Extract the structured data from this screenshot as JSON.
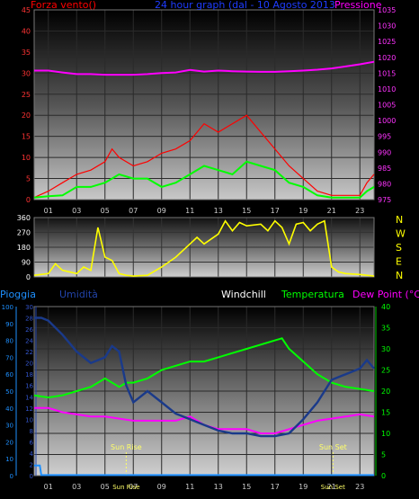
{
  "chart_data": [
    {
      "type": "line",
      "title": "24 hour graph (dal - 10 Agosto 2013",
      "left_axis_label": "Forza vento()",
      "right_axis_label": "Pressione",
      "x_ticks": [
        "01",
        "03",
        "05",
        "07",
        "09",
        "11",
        "13",
        "15",
        "17",
        "19",
        "21",
        "23"
      ],
      "x_range": [
        0,
        24
      ],
      "left_axis": {
        "min": 0,
        "max": 45,
        "ticks": [
          0,
          5,
          10,
          15,
          20,
          25,
          30,
          35,
          40,
          45
        ]
      },
      "right_axis": {
        "min": 975,
        "max": 1035,
        "ticks": [
          975,
          980,
          985,
          990,
          995,
          1000,
          1005,
          1010,
          1015,
          1020,
          1025,
          1030,
          1035
        ]
      },
      "colors": {
        "gust": "#ff0000",
        "wind": "#00ff00",
        "pressure": "#ff00ff"
      },
      "pressure": {
        "x": [
          0,
          1,
          2,
          3,
          4,
          5,
          6,
          7,
          8,
          9,
          10,
          11,
          12,
          13,
          14,
          15,
          16,
          17,
          18,
          19,
          20,
          21,
          22,
          23,
          24
        ],
        "y": [
          1015.8,
          1015.8,
          1015.2,
          1014.7,
          1014.7,
          1014.5,
          1014.5,
          1014.5,
          1014.7,
          1015.0,
          1015.2,
          1016.0,
          1015.5,
          1015.8,
          1015.6,
          1015.5,
          1015.4,
          1015.4,
          1015.6,
          1015.8,
          1016.1,
          1016.5,
          1017.1,
          1017.8,
          1018.6
        ]
      },
      "wind": {
        "x": [
          0,
          1,
          2,
          3,
          4,
          5,
          5.5,
          6,
          7,
          8,
          9,
          10,
          11,
          12,
          13,
          14,
          15,
          16,
          17,
          18,
          19,
          20,
          21,
          22,
          23,
          23.5,
          24
        ],
        "y": [
          0.5,
          0.8,
          1,
          3,
          3,
          4,
          5,
          6,
          5,
          5,
          3,
          4,
          6,
          8,
          7,
          6,
          9,
          8,
          7,
          4,
          3,
          1,
          0.5,
          0.5,
          0.5,
          2,
          3
        ]
      },
      "gust": {
        "x": [
          0,
          1,
          2,
          3,
          4,
          5,
          5.5,
          6,
          7,
          8,
          9,
          10,
          11,
          12,
          13,
          14,
          15,
          16,
          17,
          18,
          19,
          20,
          21,
          22,
          23,
          23.5,
          24
        ],
        "y": [
          0.5,
          2,
          4,
          6,
          7,
          9,
          12,
          10,
          8,
          9,
          11,
          12,
          14,
          18,
          16,
          18,
          20,
          16,
          12,
          8,
          5,
          2,
          1,
          1,
          1,
          4,
          6
        ]
      }
    },
    {
      "type": "line",
      "left_axis": {
        "min": 0,
        "max": 360,
        "ticks": [
          0,
          90,
          180,
          270,
          360
        ]
      },
      "compass_labels": [
        "N",
        "W",
        "S",
        "E",
        "N"
      ],
      "x_range": [
        0,
        24
      ],
      "colors": {
        "direction": "#ffff00"
      },
      "direction": {
        "x": [
          0,
          1,
          1.5,
          2,
          3,
          3.5,
          4,
          4.5,
          5,
          5.5,
          6,
          6.5,
          7,
          8,
          9,
          10,
          11,
          11.5,
          12,
          12.5,
          13,
          13.5,
          14,
          14.5,
          15,
          16,
          16.5,
          17,
          17.5,
          18,
          18.5,
          19,
          19.5,
          20,
          20.5,
          21,
          21.5,
          22,
          23,
          24
        ],
        "y": [
          10,
          20,
          80,
          40,
          20,
          60,
          40,
          300,
          120,
          100,
          20,
          10,
          5,
          10,
          60,
          120,
          200,
          240,
          200,
          230,
          260,
          340,
          280,
          330,
          310,
          320,
          280,
          340,
          300,
          200,
          320,
          330,
          280,
          320,
          340,
          60,
          30,
          20,
          15,
          5
        ]
      }
    },
    {
      "type": "line",
      "labels": {
        "rain": "Pioggia",
        "humidity": "Umidità",
        "windchill": "Windchill",
        "temperature": "Temperatura",
        "dewpoint": "Dew Point (°C)"
      },
      "x_ticks": [
        "01",
        "03",
        "05",
        "07",
        "09",
        "11",
        "13",
        "15",
        "17",
        "19",
        "21",
        "23"
      ],
      "x_range": [
        0,
        24
      ],
      "rain_axis": {
        "min": 0,
        "max": 100,
        "ticks": [
          0,
          10,
          20,
          30,
          40,
          50,
          60,
          70,
          80,
          90,
          100
        ]
      },
      "humidity_axis": {
        "min": 0,
        "max": 30,
        "ticks": [
          0,
          2,
          4,
          6,
          8,
          10,
          12,
          14,
          16,
          18,
          20,
          22,
          24,
          26,
          28,
          30
        ]
      },
      "temp_axis": {
        "min": 0,
        "max": 40,
        "ticks": [
          0,
          5,
          10,
          15,
          20,
          25,
          30,
          35,
          40
        ]
      },
      "annotations": [
        {
          "label": "Sun Rise",
          "x": 6.5
        },
        {
          "label": "Sun Set",
          "x": 21.1
        }
      ],
      "colors": {
        "rain": "#1e90ff",
        "humidity": "#1a3a8a",
        "temperature": "#00ff00",
        "dewpoint": "#ff00ff",
        "windchill": "#ffffff"
      },
      "humidity": {
        "x": [
          0,
          0.5,
          1,
          2,
          3,
          4,
          5,
          5.5,
          6,
          6.5,
          7,
          8,
          9,
          10,
          11,
          12,
          13,
          14,
          15,
          16,
          17,
          18,
          19,
          20,
          21,
          22,
          23,
          23.5,
          24
        ],
        "y": [
          28,
          28,
          27.5,
          25,
          22,
          20,
          21,
          23,
          22,
          16,
          13,
          15,
          13,
          11,
          10,
          9,
          8,
          7.5,
          7.5,
          7,
          7,
          7.5,
          10,
          13,
          17,
          18,
          19,
          20.5,
          19
        ]
      },
      "temperature": {
        "x": [
          0,
          1,
          2,
          3,
          4,
          5,
          6,
          6.5,
          7,
          8,
          9,
          10,
          11,
          12,
          13,
          14,
          15,
          16,
          17,
          17.5,
          18,
          19,
          20,
          21,
          22,
          23,
          24
        ],
        "y": [
          19,
          18.5,
          19,
          20,
          21,
          23,
          21,
          22,
          22,
          23,
          25,
          26,
          27,
          27,
          28,
          29,
          30,
          31,
          32,
          32.5,
          30,
          27,
          24,
          22,
          21,
          20.5,
          20
        ]
      },
      "dewpoint": {
        "x": [
          0,
          1,
          2,
          3,
          4,
          5,
          6,
          7,
          8,
          9,
          10,
          11,
          12,
          13,
          14,
          15,
          16,
          17,
          18,
          19,
          20,
          21,
          22,
          23,
          24
        ],
        "y": [
          16,
          16,
          15,
          14.5,
          14,
          14,
          13.5,
          13,
          13,
          13,
          13,
          14,
          12,
          11,
          11,
          11,
          10,
          10,
          11,
          12,
          13,
          13.5,
          14,
          14.5,
          14
        ]
      },
      "rain": {
        "x": [
          0,
          0.4,
          0.5,
          24
        ],
        "y": [
          6,
          6,
          0.3,
          0.3
        ]
      }
    }
  ]
}
